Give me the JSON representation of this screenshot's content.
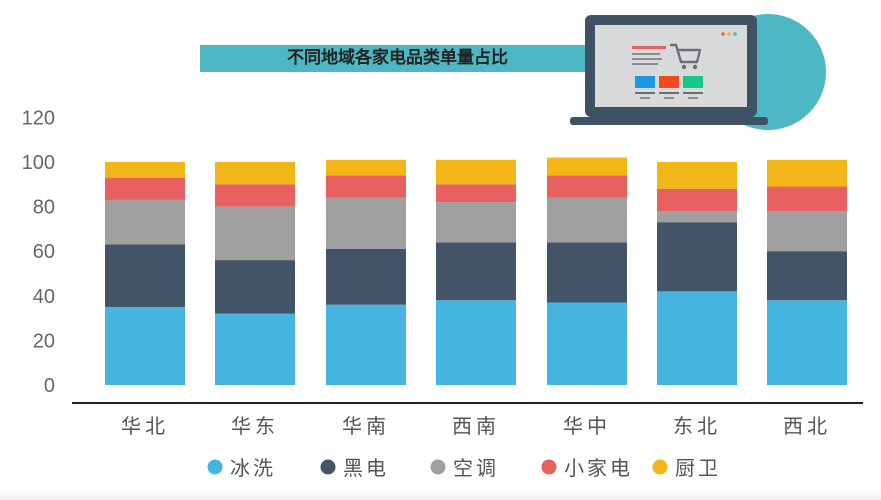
{
  "title": "不同地域各家电品类单量占比",
  "illustration": {
    "icon": "laptop-shopping-cart-icon",
    "accent_color": "#4db8c3"
  },
  "chart_data": {
    "type": "bar",
    "stacked": true,
    "categories": [
      "华北",
      "华东",
      "华南",
      "西南",
      "华中",
      "东北",
      "西北"
    ],
    "series": [
      {
        "name": "冰洗",
        "color": "#45b5e0",
        "values": [
          35,
          32,
          36,
          38,
          37,
          42,
          38
        ]
      },
      {
        "name": "黑电",
        "color": "#425466",
        "values": [
          28,
          24,
          25,
          26,
          27,
          31,
          22
        ]
      },
      {
        "name": "空调",
        "color": "#a0a0a0",
        "values": [
          20,
          24,
          23,
          18,
          20,
          5,
          18
        ]
      },
      {
        "name": "小家电",
        "color": "#e8605f",
        "values": [
          10,
          10,
          10,
          8,
          10,
          10,
          11
        ]
      },
      {
        "name": "厨卫",
        "color": "#f3b619",
        "values": [
          7,
          10,
          7,
          11,
          8,
          12,
          12
        ]
      }
    ],
    "y_ticks": [
      0,
      20,
      40,
      60,
      80,
      100,
      120
    ],
    "ylim": [
      0,
      120
    ],
    "grid": false,
    "legend_position": "bottom"
  }
}
